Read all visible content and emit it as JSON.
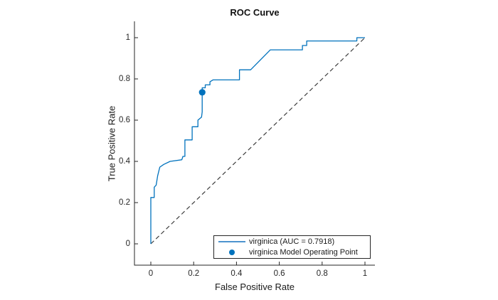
{
  "figure": {
    "title": "ROC Curve",
    "xlabel": "False Positive Rate",
    "ylabel": "True Positive Rate"
  },
  "legend": {
    "items": [
      {
        "label": "virginica (AUC = 0.7918)",
        "marker": "line"
      },
      {
        "label": "virginica Model Operating Point",
        "marker": "dot"
      }
    ]
  },
  "colors": {
    "curve": "#0072BD",
    "marker": "#0072BD",
    "reference_line": "#3d3d3d",
    "axis": "#262626",
    "text": "#1a1a1a",
    "background": "#ffffff"
  },
  "chart_data": {
    "type": "line",
    "title": "ROC Curve",
    "xlabel": "False Positive Rate",
    "ylabel": "True Positive Rate",
    "xlim": [
      -0.076,
      1.047
    ],
    "ylim": [
      -0.103,
      1.079
    ],
    "grid": false,
    "legend_position": "inside lower right",
    "xticks": [
      0,
      0.2,
      0.4,
      0.6,
      0.8,
      1
    ],
    "xtick_labels": [
      "0",
      "0.2",
      "0.4",
      "0.6",
      "0.8",
      "1"
    ],
    "yticks": [
      0,
      0.2,
      0.4,
      0.6,
      0.8,
      1
    ],
    "ytick_labels": [
      "0",
      "0.2",
      "0.4",
      "0.6",
      "0.8",
      "1"
    ],
    "auc": 0.7918,
    "series": [
      {
        "name": "virginica (AUC = 0.7918)",
        "type": "step-line",
        "color": "#0072BD",
        "points": [
          [
            0,
            0
          ],
          [
            0,
            0.225
          ],
          [
            0.016,
            0.225
          ],
          [
            0.016,
            0.275
          ],
          [
            0.025,
            0.285
          ],
          [
            0.032,
            0.33
          ],
          [
            0.042,
            0.372
          ],
          [
            0.06,
            0.385
          ],
          [
            0.09,
            0.4
          ],
          [
            0.145,
            0.408
          ],
          [
            0.15,
            0.424
          ],
          [
            0.159,
            0.424
          ],
          [
            0.159,
            0.504
          ],
          [
            0.193,
            0.504
          ],
          [
            0.193,
            0.568
          ],
          [
            0.22,
            0.568
          ],
          [
            0.22,
            0.6
          ],
          [
            0.237,
            0.615
          ],
          [
            0.24,
            0.64
          ],
          [
            0.24,
            0.757
          ],
          [
            0.254,
            0.757
          ],
          [
            0.254,
            0.771
          ],
          [
            0.276,
            0.771
          ],
          [
            0.276,
            0.786
          ],
          [
            0.29,
            0.795
          ],
          [
            0.414,
            0.795
          ],
          [
            0.414,
            0.844
          ],
          [
            0.466,
            0.844
          ],
          [
            0.558,
            0.941
          ],
          [
            0.708,
            0.941
          ],
          [
            0.708,
            0.962
          ],
          [
            0.728,
            0.962
          ],
          [
            0.728,
            0.984
          ],
          [
            0.962,
            0.984
          ],
          [
            0.962,
            1.0
          ],
          [
            1.0,
            1.0
          ]
        ]
      },
      {
        "name": "random classifier reference",
        "type": "dashed-line",
        "color": "#3d3d3d",
        "points": [
          [
            0,
            0
          ],
          [
            1,
            1
          ]
        ]
      },
      {
        "name": "virginica Model Operating Point",
        "type": "scatter",
        "color": "#0072BD",
        "points": [
          [
            0.24,
            0.735
          ]
        ]
      }
    ]
  }
}
